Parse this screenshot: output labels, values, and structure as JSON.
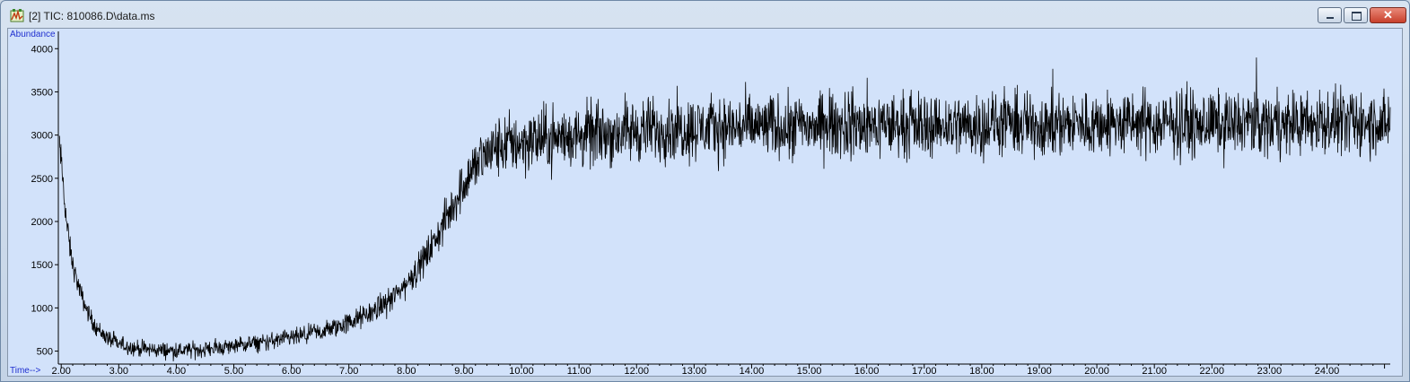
{
  "window": {
    "title": "[2] TIC: 810086.D\\data.ms",
    "close_label": "✕",
    "icon": "chromatogram-app-icon"
  },
  "chart_data": {
    "type": "line",
    "title": "",
    "xlabel": "Time-->",
    "ylabel": "Abundance",
    "xlim": [
      1.95,
      25.1
    ],
    "ylim": [
      350,
      4200
    ],
    "x_ticks": [
      2,
      3,
      4,
      5,
      6,
      7,
      8,
      9,
      10,
      11,
      12,
      13,
      14,
      15,
      16,
      17,
      18,
      19,
      20,
      21,
      22,
      23,
      24
    ],
    "x_tick_labels": [
      "2.00",
      "3.00",
      "4.00",
      "5.00",
      "6.00",
      "7.00",
      "8.00",
      "9.00",
      "10.00",
      "11.00",
      "12.00",
      "13.00",
      "14.00",
      "15.00",
      "16.00",
      "17.00",
      "18.00",
      "19.00",
      "20.00",
      "21.00",
      "22.00",
      "23.00",
      "24.00"
    ],
    "y_ticks": [
      500,
      1000,
      1500,
      2000,
      2500,
      3000,
      3500,
      4000
    ],
    "y_tick_labels": [
      "500",
      "1000",
      "1500",
      "2000",
      "2500",
      "3000",
      "3500",
      "4000"
    ],
    "grid": false,
    "series": [
      {
        "color": "#000000",
        "x": [
          1.97,
          2.0,
          2.05,
          2.1,
          2.15,
          2.2,
          2.3,
          2.4,
          2.5,
          2.6,
          2.75,
          2.9,
          3.0,
          3.25,
          3.5,
          3.75,
          4.0,
          4.25,
          4.5,
          4.75,
          5.0,
          5.25,
          5.5,
          5.75,
          6.0,
          6.25,
          6.5,
          6.75,
          7.0,
          7.25,
          7.5,
          7.75,
          8.0,
          8.25,
          8.5,
          8.75,
          9.0,
          9.25,
          9.5,
          9.75,
          10.0,
          10.5,
          11.0,
          11.5,
          12.0,
          12.5,
          13.0,
          13.5,
          14.0,
          14.5,
          15.0,
          15.5,
          16.0,
          16.5,
          17.0,
          17.5,
          18.0,
          18.5,
          19.0,
          19.5,
          20.0,
          20.5,
          21.0,
          21.5,
          22.0,
          22.5,
          23.0,
          23.5,
          24.0,
          24.5,
          25.1
        ],
        "y": [
          2850,
          2700,
          2300,
          1950,
          1700,
          1500,
          1250,
          1050,
          900,
          780,
          680,
          610,
          580,
          540,
          520,
          510,
          505,
          510,
          520,
          540,
          560,
          580,
          600,
          625,
          650,
          680,
          720,
          770,
          830,
          900,
          990,
          1110,
          1280,
          1500,
          1780,
          2100,
          2450,
          2700,
          2830,
          2900,
          2920,
          2960,
          2990,
          3020,
          3050,
          3070,
          3080,
          3090,
          3095,
          3100,
          3105,
          3110,
          3110,
          3115,
          3115,
          3120,
          3120,
          3125,
          3125,
          3125,
          3130,
          3130,
          3130,
          3130,
          3135,
          3135,
          3135,
          3140,
          3140,
          3140,
          3140
        ],
        "noise_amplitude": [
          150,
          150,
          150,
          140,
          120,
          110,
          100,
          95,
          90,
          85,
          85,
          80,
          80,
          80,
          80,
          80,
          80,
          80,
          80,
          80,
          80,
          82,
          85,
          88,
          90,
          95,
          100,
          105,
          110,
          115,
          120,
          130,
          140,
          160,
          180,
          210,
          250,
          280,
          300,
          310,
          320,
          320,
          320,
          320,
          320,
          320,
          320,
          320,
          320,
          320,
          320,
          320,
          320,
          320,
          320,
          320,
          320,
          320,
          320,
          320,
          320,
          320,
          320,
          320,
          320,
          320,
          320,
          320,
          320,
          320,
          320
        ]
      }
    ]
  }
}
